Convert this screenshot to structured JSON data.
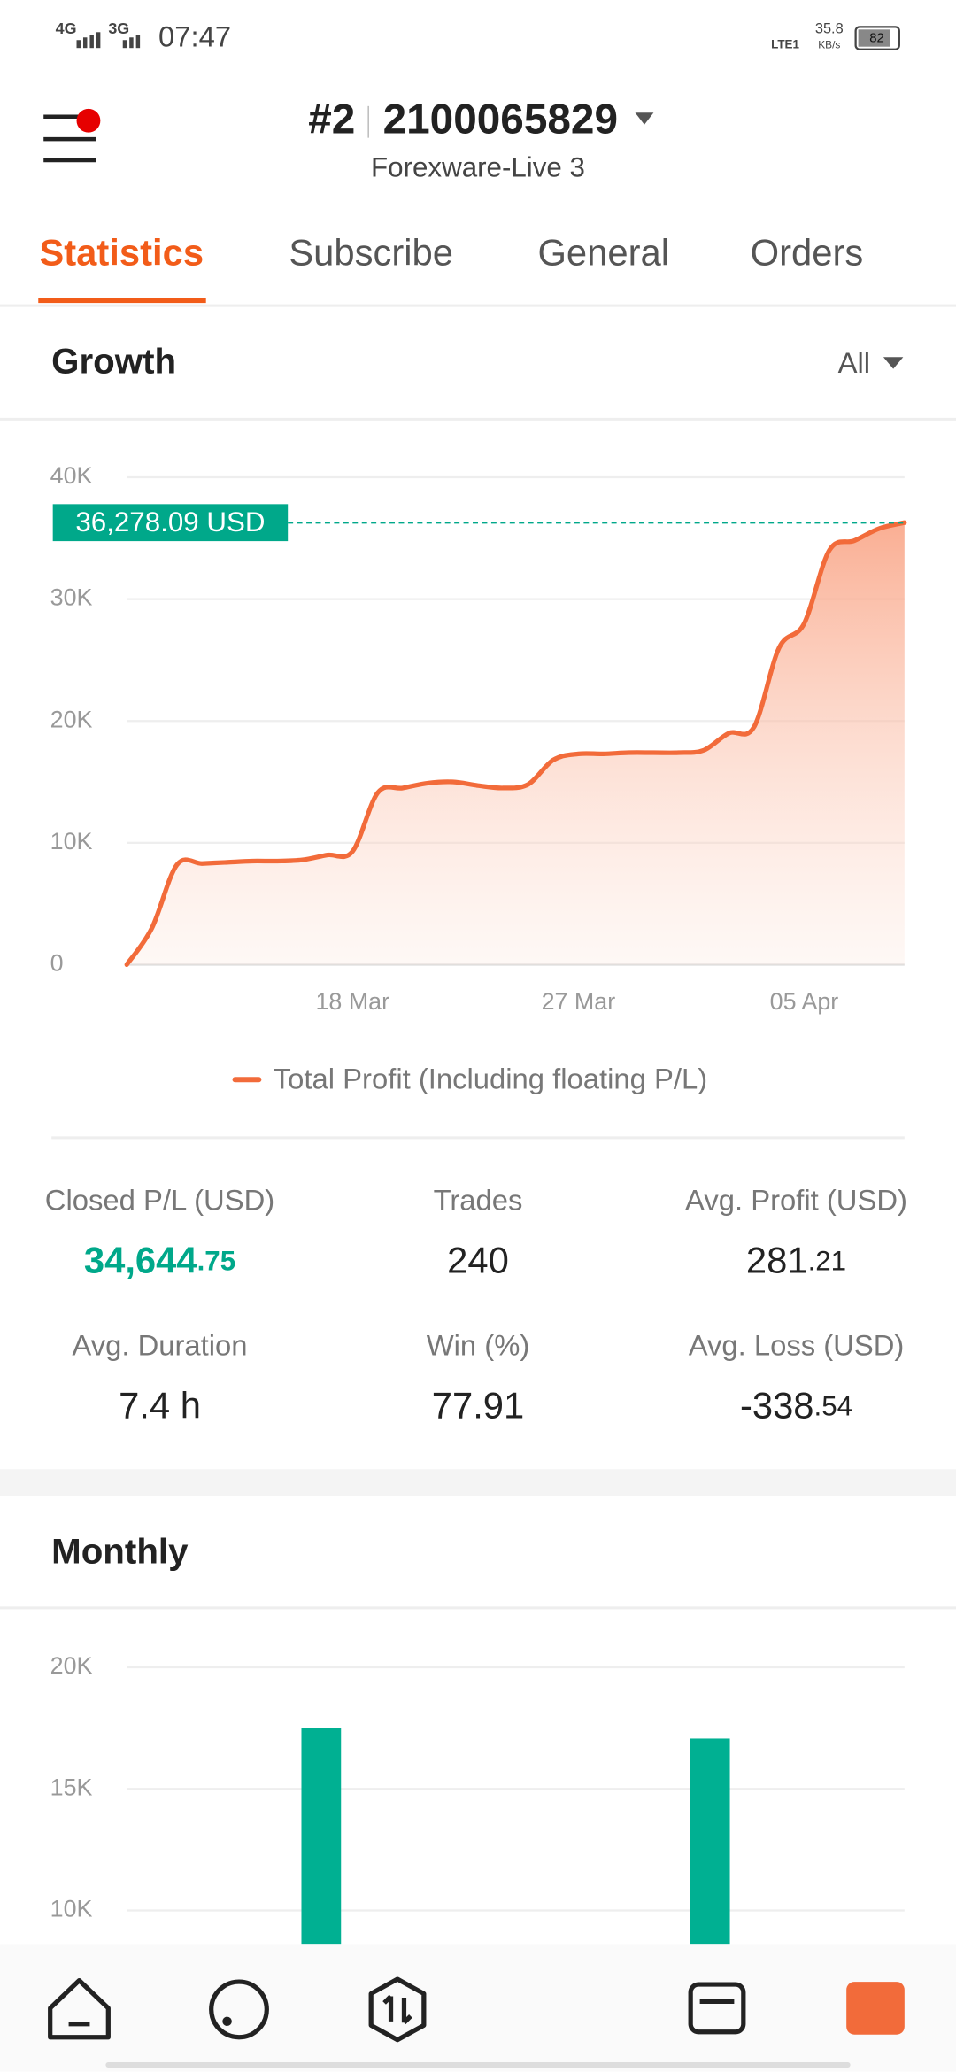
{
  "status_bar": {
    "network_1": "4G",
    "network_2": "3G",
    "time": "07:47",
    "volte": "LTE1",
    "speed": "35.8",
    "speed_unit": "KB/s",
    "battery": "82"
  },
  "header": {
    "title_prefix": "#2",
    "account": "2100065829",
    "server": "Forexware-Live 3"
  },
  "tabs": [
    "Statistics",
    "Subscribe",
    "General",
    "Orders"
  ],
  "growth": {
    "title": "Growth",
    "filter": "All"
  },
  "chart_data": [
    {
      "type": "line",
      "categories": [
        null,
        null,
        null,
        null,
        null,
        null,
        null,
        null,
        null,
        "18 Mar",
        null,
        null,
        null,
        null,
        null,
        null,
        null,
        null,
        "27 Mar",
        null,
        null,
        null,
        null,
        null,
        null,
        null,
        null,
        "05 Apr",
        null,
        null,
        null,
        null
      ],
      "series": [
        {
          "name": "Total Profit (Including floating P/L)",
          "color": "#f26b3a",
          "values": [
            0,
            3000,
            8200,
            8300,
            8400,
            8500,
            8500,
            8600,
            9000,
            9300,
            14100,
            14500,
            14900,
            15000,
            14700,
            14500,
            14800,
            16800,
            17300,
            17300,
            17400,
            17400,
            17400,
            17600,
            19000,
            19500,
            26000,
            28000,
            34000,
            34800,
            35800,
            36278.09
          ]
        }
      ],
      "ylim": [
        0,
        40000
      ],
      "yticks": [
        0,
        {
          "value": 10000,
          "label": "10K"
        },
        {
          "value": 20000,
          "label": "20K"
        },
        {
          "value": 30000,
          "label": "30K"
        },
        {
          "value": 40000,
          "label": "40K"
        }
      ],
      "grid": true,
      "annotation": {
        "value": 36278.09,
        "label": "36,278.09 USD",
        "color": "#00a88a"
      }
    },
    {
      "type": "bar",
      "categories": [
        null,
        null
      ],
      "values": [
        17500,
        17070
      ],
      "color": "#00b092",
      "ylim": [
        0,
        20000
      ],
      "yticks": [
        {
          "value": 10000,
          "label": "10K"
        },
        {
          "value": 15000,
          "label": "15K"
        },
        {
          "value": 20000,
          "label": "20K"
        }
      ],
      "grid": true
    }
  ],
  "stats": [
    {
      "label": "Closed P/L (USD)",
      "whole": "34,644",
      "fraction": ".75"
    },
    {
      "label": "Trades",
      "whole": "240"
    },
    {
      "label": "Avg. Profit (USD)",
      "whole": "281",
      "fraction": ".21"
    },
    {
      "label": "Avg. Duration",
      "whole": "7.4 h"
    },
    {
      "label": "Win (%)",
      "whole": "77.91"
    },
    {
      "label": "Avg. Loss (USD)",
      "whole": "-338",
      "fraction": ".54"
    }
  ],
  "monthly": {
    "title": "Monthly"
  }
}
